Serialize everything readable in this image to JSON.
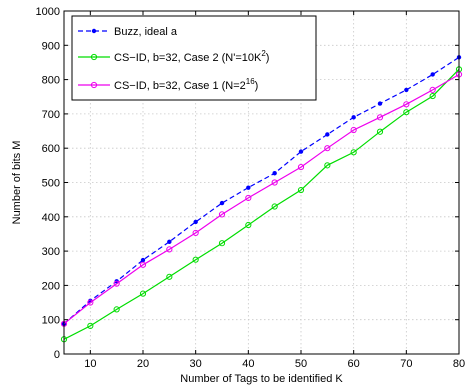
{
  "chart_data": {
    "type": "line",
    "xlabel": "Number of Tags to be identified K",
    "ylabel": "Number of bits M",
    "xlim": [
      5,
      80
    ],
    "ylim": [
      0,
      1000
    ],
    "xticks": [
      10,
      20,
      30,
      40,
      50,
      60,
      70,
      80
    ],
    "yticks": [
      0,
      100,
      200,
      300,
      400,
      500,
      600,
      700,
      800,
      900,
      1000
    ],
    "grid": true,
    "legend_position": "top-left",
    "x": [
      5,
      10,
      15,
      20,
      25,
      30,
      35,
      40,
      45,
      50,
      55,
      60,
      65,
      70,
      75,
      80
    ],
    "series": [
      {
        "name": "Buzz, ideal a",
        "name_parts": {
          "text": "Buzz, ideal a"
        },
        "color": "#0000ff",
        "line_style": "dashed",
        "marker": "dot",
        "values": [
          88,
          155,
          212,
          274,
          327,
          385,
          440,
          485,
          527,
          590,
          640,
          690,
          730,
          770,
          815,
          865
        ]
      },
      {
        "name": "CS−ID, b=32, Case 2 (N'=10K2)",
        "name_parts": {
          "text": "CS−ID, b=32, Case 2 (N'=10K",
          "sup": "2",
          "suffix": ")"
        },
        "color": "#00dd00",
        "line_style": "solid",
        "marker": "circle",
        "values": [
          43,
          82,
          130,
          176,
          225,
          275,
          323,
          376,
          430,
          478,
          550,
          588,
          648,
          705,
          752,
          830
        ]
      },
      {
        "name": "CS−ID, b=32, Case 1 (N=216)",
        "name_parts": {
          "text": "CS−ID, b=32, Case 1 (N=2",
          "sup": "16",
          "suffix": ")"
        },
        "color": "#ee00ee",
        "line_style": "solid",
        "marker": "circle",
        "values": [
          88,
          150,
          205,
          260,
          305,
          353,
          407,
          455,
          500,
          545,
          600,
          653,
          690,
          728,
          770,
          815
        ]
      }
    ]
  }
}
